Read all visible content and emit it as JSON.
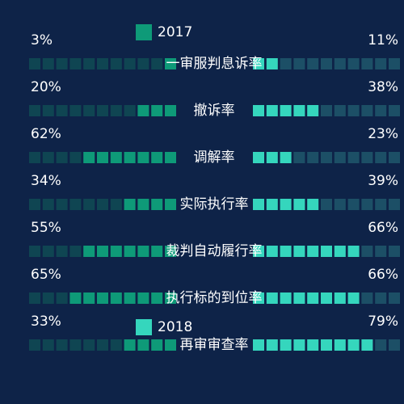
{
  "chart_data": {
    "type": "pictorial-bar",
    "categories": [
      "一审服判息诉率",
      "撤诉率",
      "调解率",
      "实际执行率",
      "裁判自动履行率",
      "执行标的到位率",
      "再审审查率"
    ],
    "series": [
      {
        "name": "2017",
        "color": "#0e9a78",
        "empty_color": "#0f4552",
        "values": [
          3,
          20,
          62,
          34,
          55,
          65,
          33
        ],
        "value_labels": [
          "3%",
          "20%",
          "62%",
          "34%",
          "55%",
          "65%",
          "33%"
        ]
      },
      {
        "name": "2018",
        "color": "#35d6bd",
        "empty_color": "#1c4f66",
        "values": [
          11,
          38,
          23,
          39,
          66,
          66,
          79
        ],
        "value_labels": [
          "11%",
          "38%",
          "23%",
          "39%",
          "66%",
          "66%",
          "79%"
        ]
      }
    ],
    "xlim": [
      0,
      100
    ]
  }
}
